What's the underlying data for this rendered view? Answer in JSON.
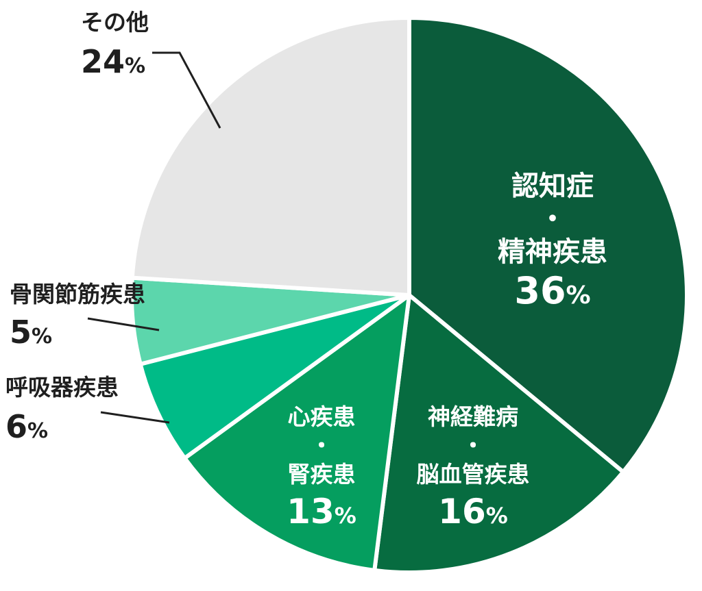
{
  "chart_data": {
    "type": "pie",
    "title": "",
    "slices": [
      {
        "lines": [
          "認知症",
          "・",
          "精神疾患"
        ],
        "value": 36,
        "color": "#0b5c3b",
        "text_color": "#ffffff",
        "placement": "inside"
      },
      {
        "lines": [
          "神経難病",
          "・",
          "脳血管疾患"
        ],
        "value": 16,
        "color": "#076c40",
        "text_color": "#ffffff",
        "placement": "inside"
      },
      {
        "lines": [
          "心疾患",
          "・",
          "腎疾患"
        ],
        "value": 13,
        "color": "#059e5f",
        "text_color": "#ffffff",
        "placement": "inside"
      },
      {
        "lines": [
          "呼吸器疾患"
        ],
        "value": 6,
        "color": "#00bb87",
        "text_color": "#1f1f1f",
        "placement": "outside"
      },
      {
        "lines": [
          "骨関節筋疾患"
        ],
        "value": 5,
        "color": "#5cd6ac",
        "text_color": "#1f1f1f",
        "placement": "outside"
      },
      {
        "lines": [
          "その他"
        ],
        "value": 24,
        "color": "#e6e6e6",
        "text_color": "#1f1f1f",
        "placement": "outside"
      }
    ],
    "value_suffix": "%",
    "start_angle": "12 o'clock",
    "direction": "clockwise",
    "legend": "none"
  }
}
